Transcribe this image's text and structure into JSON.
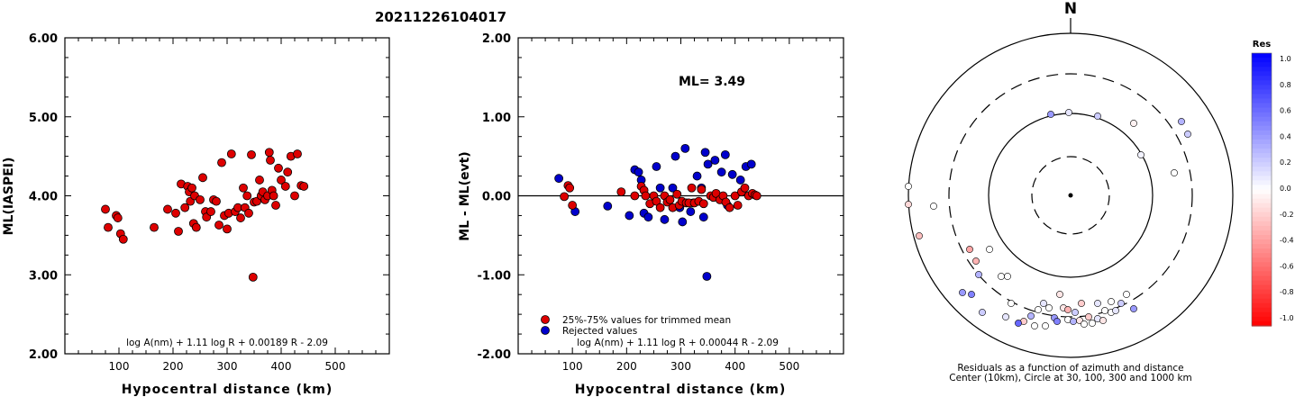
{
  "event_id": "20211226104017",
  "left_panel": {
    "ylabel": "ML(IASPEI)",
    "xlabel": "Hypocentral distance (km)",
    "formula": "log A(nm) + 1.11 log R + 0.00189 R - 2.09",
    "y_ticks": [
      "2.00",
      "3.00",
      "4.00",
      "5.00",
      "6.00"
    ],
    "x_ticks": [
      "100",
      "200",
      "300",
      "400",
      "500"
    ]
  },
  "middle_panel": {
    "ylabel": "ML - ML(evt)",
    "xlabel": "Hypocentral distance (km)",
    "ml_label": "ML= 3.49",
    "formula": "log A(nm) + 1.11 log R + 0.00044 R - 2.09",
    "legend_trimmed": "25%-75% values for trimmed mean",
    "legend_rejected": "Rejected values",
    "y_ticks": [
      "-2.00",
      "-1.00",
      "0.00",
      "1.00",
      "2.00"
    ],
    "x_ticks": [
      "100",
      "200",
      "300",
      "400",
      "500"
    ]
  },
  "polar_panel": {
    "north_label": "N",
    "caption_line1": "Residuals as a function of azimuth and distance",
    "caption_line2": "Center (10km), Circle at 30, 100, 300 and 1000 km",
    "colorbar_title": "Res",
    "colorbar_ticks": [
      "1.0",
      "0.8",
      "0.6",
      "0.4",
      "0.2",
      "0.0",
      "-0.2",
      "-0.4",
      "-0.6",
      "-0.8",
      "-1.0"
    ]
  },
  "colors": {
    "trimmed": "#dd0000",
    "rejected": "#0000cc",
    "res_pos": "#0000ff",
    "res_neg": "#ff0000"
  },
  "chart_data": [
    {
      "type": "scatter",
      "xlabel": "Hypocentral distance (km)",
      "ylabel": "ML(IASPEI)",
      "xlim": [
        0,
        600
      ],
      "ylim": [
        2,
        6
      ],
      "series": [
        {
          "points": [
            [
              75,
              3.83
            ],
            [
              80,
              3.6
            ],
            [
              95,
              3.75
            ],
            [
              98,
              3.72
            ],
            [
              103,
              3.52
            ],
            [
              108,
              3.45
            ],
            [
              165,
              3.6
            ],
            [
              190,
              3.83
            ],
            [
              205,
              3.78
            ],
            [
              210,
              3.55
            ],
            [
              215,
              4.15
            ],
            [
              222,
              3.85
            ],
            [
              227,
              4.12
            ],
            [
              230,
              4.05
            ],
            [
              232,
              3.93
            ],
            [
              235,
              4.1
            ],
            [
              238,
              3.65
            ],
            [
              240,
              4.0
            ],
            [
              243,
              3.6
            ],
            [
              250,
              3.95
            ],
            [
              255,
              4.23
            ],
            [
              260,
              3.8
            ],
            [
              262,
              3.73
            ],
            [
              270,
              3.8
            ],
            [
              275,
              3.95
            ],
            [
              280,
              3.93
            ],
            [
              285,
              3.63
            ],
            [
              290,
              4.42
            ],
            [
              295,
              3.75
            ],
            [
              300,
              3.58
            ],
            [
              303,
              3.78
            ],
            [
              308,
              4.53
            ],
            [
              315,
              3.8
            ],
            [
              320,
              3.85
            ],
            [
              325,
              3.72
            ],
            [
              330,
              4.1
            ],
            [
              333,
              3.85
            ],
            [
              337,
              4.0
            ],
            [
              340,
              3.78
            ],
            [
              345,
              4.52
            ],
            [
              348,
              2.97
            ],
            [
              350,
              3.92
            ],
            [
              355,
              3.93
            ],
            [
              360,
              4.2
            ],
            [
              363,
              4.0
            ],
            [
              366,
              4.05
            ],
            [
              370,
              3.95
            ],
            [
              375,
              4.0
            ],
            [
              380,
              4.45
            ],
            [
              383,
              4.07
            ],
            [
              386,
              4.0
            ],
            [
              390,
              3.88
            ],
            [
              395,
              4.35
            ],
            [
              400,
              4.2
            ],
            [
              408,
              4.12
            ],
            [
              412,
              4.3
            ],
            [
              418,
              4.5
            ],
            [
              425,
              4.0
            ],
            [
              430,
              4.53
            ],
            [
              437,
              4.13
            ],
            [
              442,
              4.12
            ],
            [
              378,
              4.55
            ]
          ]
        }
      ]
    },
    {
      "type": "scatter",
      "xlabel": "Hypocentral distance (km)",
      "ylabel": "ML - ML(evt)",
      "xlim": [
        0,
        600
      ],
      "ylim": [
        -2,
        2
      ],
      "series": [
        {
          "name": "25%-75% values for trimmed mean",
          "points": [
            [
              85,
              -0.01
            ],
            [
              92,
              0.13
            ],
            [
              95,
              0.1
            ],
            [
              100,
              -0.12
            ],
            [
              190,
              0.05
            ],
            [
              215,
              0.0
            ],
            [
              227,
              0.12
            ],
            [
              232,
              0.07
            ],
            [
              235,
              0.0
            ],
            [
              243,
              -0.1
            ],
            [
              250,
              0.0
            ],
            [
              255,
              -0.07
            ],
            [
              262,
              -0.15
            ],
            [
              270,
              0.0
            ],
            [
              275,
              -0.08
            ],
            [
              280,
              -0.05
            ],
            [
              285,
              -0.15
            ],
            [
              293,
              0.02
            ],
            [
              297,
              -0.12
            ],
            [
              302,
              -0.07
            ],
            [
              310,
              -0.09
            ],
            [
              315,
              -0.09
            ],
            [
              320,
              0.1
            ],
            [
              325,
              -0.09
            ],
            [
              333,
              -0.07
            ],
            [
              338,
              0.08
            ],
            [
              342,
              -0.1
            ],
            [
              355,
              0.0
            ],
            [
              360,
              -0.02
            ],
            [
              365,
              0.03
            ],
            [
              372,
              -0.05
            ],
            [
              378,
              0.0
            ],
            [
              383,
              -0.08
            ],
            [
              390,
              -0.15
            ],
            [
              400,
              0.0
            ],
            [
              405,
              -0.12
            ],
            [
              412,
              0.05
            ],
            [
              418,
              0.1
            ],
            [
              425,
              0.0
            ],
            [
              432,
              0.03
            ],
            [
              437,
              0.01
            ],
            [
              440,
              0.0
            ]
          ]
        },
        {
          "name": "Rejected values",
          "points": [
            [
              75,
              0.22
            ],
            [
              105,
              -0.2
            ],
            [
              165,
              -0.13
            ],
            [
              205,
              -0.25
            ],
            [
              215,
              0.33
            ],
            [
              222,
              0.3
            ],
            [
              227,
              0.2
            ],
            [
              232,
              -0.22
            ],
            [
              240,
              -0.27
            ],
            [
              255,
              0.37
            ],
            [
              262,
              0.1
            ],
            [
              270,
              -0.3
            ],
            [
              285,
              0.1
            ],
            [
              290,
              0.5
            ],
            [
              298,
              -0.15
            ],
            [
              303,
              -0.33
            ],
            [
              308,
              0.6
            ],
            [
              318,
              -0.2
            ],
            [
              323,
              -0.09
            ],
            [
              330,
              0.25
            ],
            [
              338,
              0.1
            ],
            [
              342,
              -0.27
            ],
            [
              345,
              0.55
            ],
            [
              348,
              -1.02
            ],
            [
              350,
              0.4
            ],
            [
              363,
              0.45
            ],
            [
              375,
              0.3
            ],
            [
              382,
              0.52
            ],
            [
              386,
              -0.12
            ],
            [
              395,
              0.27
            ],
            [
              410,
              0.2
            ],
            [
              420,
              0.37
            ],
            [
              430,
              0.4
            ]
          ]
        }
      ]
    }
  ],
  "polar_points": [
    [
      -22,
      -90,
      0.4
    ],
    [
      -2,
      -92,
      0.1
    ],
    [
      30,
      -88,
      0.2
    ],
    [
      70,
      -80,
      -0.05
    ],
    [
      123,
      -82,
      0.3
    ],
    [
      78,
      -45,
      0.05
    ],
    [
      -180,
      -10,
      0.0
    ],
    [
      -152,
      12,
      0.0
    ],
    [
      -168,
      45,
      -0.25
    ],
    [
      -112,
      60,
      -0.35
    ],
    [
      -105,
      73,
      -0.3
    ],
    [
      -90,
      60,
      0.0
    ],
    [
      -77,
      90,
      0.0
    ],
    [
      -70,
      90,
      0.0
    ],
    [
      -110,
      110,
      0.5
    ],
    [
      -120,
      108,
      0.4
    ],
    [
      -102,
      88,
      0.3
    ],
    [
      -98,
      130,
      0.2
    ],
    [
      -66,
      120,
      0.0
    ],
    [
      -30,
      120,
      0.1
    ],
    [
      -12,
      110,
      -0.1
    ],
    [
      30,
      120,
      0.1
    ],
    [
      38,
      128,
      0.0
    ],
    [
      56,
      120,
      0.2
    ],
    [
      45,
      118,
      0.0
    ],
    [
      -36,
      127,
      0.0
    ],
    [
      -18,
      136,
      0.4
    ],
    [
      -44,
      134,
      0.3
    ],
    [
      -52,
      140,
      -0.2
    ],
    [
      -15,
      140,
      0.5
    ],
    [
      -3,
      138,
      0.0
    ],
    [
      3,
      140,
      0.3
    ],
    [
      10,
      139,
      -0.1
    ],
    [
      15,
      143,
      0.0
    ],
    [
      20,
      135,
      -0.2
    ],
    [
      24,
      142,
      0.0
    ],
    [
      30,
      137,
      0.1
    ],
    [
      36,
      139,
      -0.1
    ],
    [
      45,
      130,
      0.0
    ],
    [
      50,
      128,
      0.1
    ],
    [
      -24,
      125,
      0.0
    ],
    [
      -8,
      125,
      -0.1
    ],
    [
      -40,
      145,
      0.0
    ],
    [
      -28,
      145,
      0.0
    ],
    [
      5,
      130,
      0.2
    ],
    [
      70,
      126,
      0.4
    ],
    [
      115,
      -25,
      0.0
    ],
    [
      130,
      -68,
      0.2
    ],
    [
      -180,
      10,
      -0.15
    ],
    [
      -58,
      142,
      0.6
    ],
    [
      -72,
      135,
      0.1
    ],
    [
      12,
      120,
      -0.2
    ],
    [
      62,
      110,
      0.0
    ],
    [
      -3,
      127,
      -0.3
    ]
  ]
}
